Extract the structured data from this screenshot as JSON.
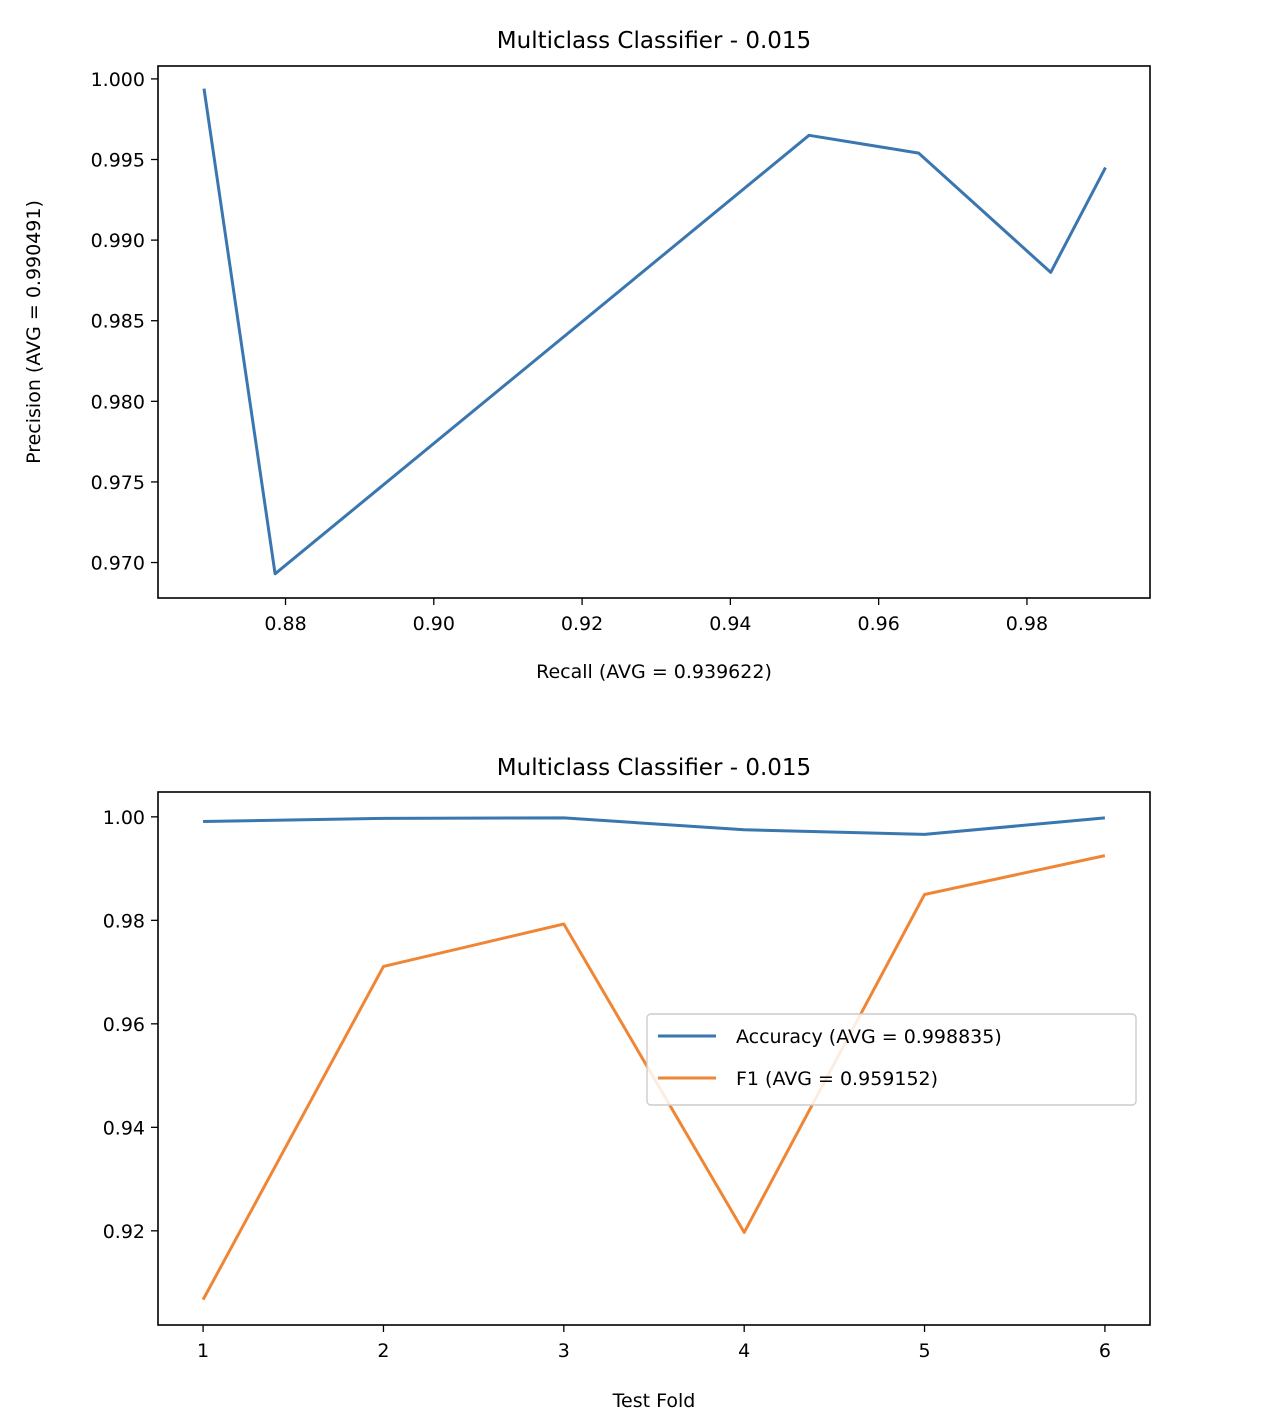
{
  "chart_data": [
    {
      "type": "line",
      "title": "Multiclass Classifier - 0.015",
      "xlabel": "Recall (AVG = 0.939622)",
      "ylabel": "Precision (AVG = 0.990491)",
      "xlim": [
        0.8628,
        0.9966
      ],
      "ylim": [
        0.9678,
        1.0008
      ],
      "xticks": [
        "0.88",
        "0.90",
        "0.92",
        "0.94",
        "0.96",
        "0.98"
      ],
      "yticks": [
        "0.970",
        "0.975",
        "0.980",
        "0.985",
        "0.990",
        "0.995",
        "1.000"
      ],
      "legend": null,
      "series": [
        {
          "color": "#3a76af",
          "points": [
            [
              0.869,
              0.9994
            ],
            [
              0.8786,
              0.9693
            ],
            [
              0.9506,
              0.9965
            ],
            [
              0.9654,
              0.9954
            ],
            [
              0.9832,
              0.988
            ],
            [
              0.9906,
              0.9945
            ]
          ]
        }
      ]
    },
    {
      "type": "line",
      "title": "Multiclass Classifier - 0.015",
      "xlabel": "Test Fold",
      "ylabel": "",
      "xlim": [
        0.75,
        6.25
      ],
      "ylim": [
        0.9018,
        1.0048
      ],
      "xticks": [
        "1",
        "2",
        "3",
        "4",
        "5",
        "6"
      ],
      "yticks": [
        "0.92",
        "0.94",
        "0.96",
        "0.98",
        "1.00"
      ],
      "legend": "center-right",
      "series": [
        {
          "name": "Accuracy (AVG = 0.998835)",
          "color": "#3a76af",
          "points": [
            [
              1,
              0.9991
            ],
            [
              2,
              0.9997
            ],
            [
              3,
              0.9998
            ],
            [
              4,
              0.9975
            ],
            [
              5,
              0.9966
            ],
            [
              6,
              0.9998
            ]
          ]
        },
        {
          "name": "F1 (AVG = 0.959152)",
          "color": "#ef8636",
          "points": [
            [
              1,
              0.9067
            ],
            [
              2,
              0.9711
            ],
            [
              3,
              0.9793
            ],
            [
              4,
              0.9197
            ],
            [
              5,
              0.985
            ],
            [
              6,
              0.9925
            ]
          ]
        }
      ]
    }
  ]
}
